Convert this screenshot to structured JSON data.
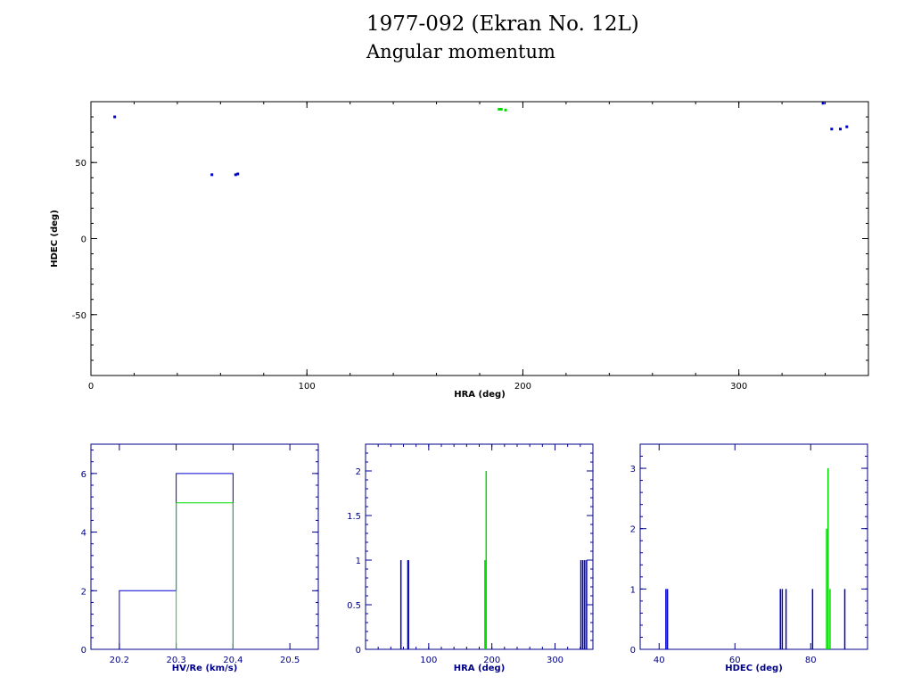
{
  "title_line1": "1977-092 (Ekran No. 12L)",
  "title_line2": "Angular momentum",
  "colors": {
    "axis": "#000000",
    "axis_small": "#00008b",
    "blue": "#0000cd",
    "green": "#00dd00"
  },
  "chart_data": [
    {
      "type": "scatter",
      "xlabel": "HRA (deg)",
      "ylabel": "HDEC (deg)",
      "xlim": [
        0,
        360
      ],
      "ylim": [
        -90,
        90
      ],
      "xticks": [
        0,
        100,
        200,
        300
      ],
      "yticks": [
        -50,
        0,
        50
      ],
      "series": [
        {
          "color": "blue",
          "points": [
            [
              11,
              80
            ],
            [
              56,
              42
            ],
            [
              67,
              42
            ],
            [
              68,
              42.5
            ],
            [
              339,
              89
            ],
            [
              343,
              72
            ],
            [
              347,
              72
            ],
            [
              350,
              73.5
            ]
          ]
        },
        {
          "color": "green",
          "points": [
            [
              189,
              85
            ],
            [
              190,
              85
            ],
            [
              192,
              84.5
            ]
          ]
        }
      ]
    },
    {
      "type": "histogram",
      "xlabel": "HV/Re (km/s)",
      "ylabel": "",
      "xlim": [
        20.15,
        20.55
      ],
      "ylim": [
        0,
        7
      ],
      "xticks": [
        20.2,
        20.3,
        20.4,
        20.5
      ],
      "yticks": [
        0,
        2,
        4,
        6
      ],
      "series": [
        {
          "color": "blue",
          "bins": [
            [
              20.2,
              20.3,
              2
            ],
            [
              20.3,
              20.4,
              6
            ]
          ]
        },
        {
          "color": "green",
          "bins": [
            [
              20.3,
              20.4,
              5
            ]
          ]
        }
      ]
    },
    {
      "type": "histogram",
      "xlabel": "HRA (deg)",
      "ylabel": "",
      "xlim": [
        0,
        360
      ],
      "ylim": [
        0,
        2.3
      ],
      "xticks": [
        100,
        200,
        300
      ],
      "yticks": [
        0,
        0.5,
        1,
        1.5,
        2
      ],
      "series": [
        {
          "color": "blue",
          "bars": [
            [
              56,
              1
            ],
            [
              67,
              1
            ],
            [
              68,
              1
            ],
            [
              341,
              1
            ],
            [
              344,
              1
            ],
            [
              347,
              1
            ],
            [
              350,
              1
            ]
          ]
        },
        {
          "color": "green",
          "bars": [
            [
              189,
              1
            ],
            [
              191,
              2
            ]
          ]
        }
      ]
    },
    {
      "type": "histogram",
      "xlabel": "HDEC (deg)",
      "ylabel": "",
      "xlim": [
        35,
        95
      ],
      "ylim": [
        0,
        3.4
      ],
      "xticks": [
        40,
        60,
        80
      ],
      "yticks": [
        0,
        1,
        2,
        3
      ],
      "series": [
        {
          "color": "blue",
          "bars": [
            [
              41.8,
              1
            ],
            [
              42.2,
              1
            ],
            [
              72,
              1
            ],
            [
              72.5,
              1
            ],
            [
              73.5,
              1
            ],
            [
              80.5,
              1
            ],
            [
              89,
              1
            ]
          ]
        },
        {
          "color": "green",
          "bars": [
            [
              84.2,
              2
            ],
            [
              84.6,
              3
            ],
            [
              85.1,
              1
            ]
          ]
        }
      ]
    }
  ]
}
